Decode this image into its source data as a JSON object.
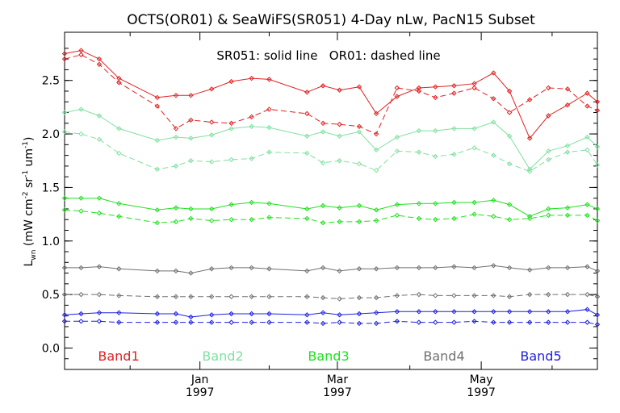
{
  "chart_data": {
    "type": "line",
    "title": "OCTS(OR01) & SeaWiFS(SR051) 4-Day nLw, PacN15 Subset",
    "annotation": "SR051: solid line   OR01: dashed line",
    "ylabel": "L_wn (mW cm^-2 sr^-1 um^-1)",
    "ylabel_main": "L",
    "ylabel_sub": "wn",
    "ylabel_rest": "(mW cm",
    "ylabel_sup1": "-2",
    "ylabel_mid": "sr",
    "ylabel_sup2": "-1",
    "ylabel_mid2": "um",
    "ylabel_sup3": "-1",
    "ylabel_end": ")",
    "ylim": [
      -0.2,
      2.95
    ],
    "yticks": [
      "0.0",
      "0.5",
      "1.0",
      "1.5",
      "2.0",
      "2.5"
    ],
    "ytick_values": [
      0.0,
      0.5,
      1.0,
      1.5,
      2.0,
      2.5
    ],
    "xlim": [
      0,
      100
    ],
    "xticks": [
      {
        "pos": 25.4,
        "label": "Jan",
        "year": "1997"
      },
      {
        "pos": 51.2,
        "label": "Mar",
        "year": "1997"
      },
      {
        "pos": 78.2,
        "label": "May",
        "year": "1997"
      }
    ],
    "grid": false,
    "legend_placement": "bottom",
    "bands": [
      {
        "name": "Band1",
        "color": "#e02020"
      },
      {
        "name": "Band2",
        "color": "#80e0a0"
      },
      {
        "name": "Band3",
        "color": "#20e020"
      },
      {
        "name": "Band4",
        "color": "#707070"
      },
      {
        "name": "Band5",
        "color": "#2020e0"
      }
    ],
    "series": [
      {
        "band": "Band1",
        "style": "solid",
        "x": [
          0,
          3.1,
          6.5,
          10.2,
          17.4,
          20.9,
          23.7,
          27.6,
          31.3,
          35.1,
          38.4,
          45.5,
          48.5,
          51.6,
          55.3,
          58.5,
          62.4,
          66.5,
          69.6,
          73.1,
          76.9,
          80.5,
          83.5,
          87.3,
          90.8,
          94.4,
          98.1,
          100
        ],
        "y": [
          2.75,
          2.78,
          2.7,
          2.52,
          2.34,
          2.36,
          2.36,
          2.42,
          2.49,
          2.52,
          2.51,
          2.39,
          2.45,
          2.41,
          2.44,
          2.19,
          2.35,
          2.43,
          2.44,
          2.45,
          2.47,
          2.57,
          2.4,
          1.96,
          2.17,
          2.27,
          2.38,
          2.3
        ]
      },
      {
        "band": "Band1",
        "style": "dashed",
        "x": [
          0,
          3.1,
          6.5,
          10.2,
          17.4,
          20.9,
          23.7,
          27.6,
          31.3,
          35.1,
          38.4,
          45.5,
          48.5,
          51.6,
          55.3,
          58.5,
          62.4,
          66.5,
          69.6,
          73.1,
          76.9,
          80.5,
          83.5,
          87.3,
          90.8,
          94.4,
          98.1,
          100
        ],
        "y": [
          2.7,
          2.74,
          2.65,
          2.48,
          2.26,
          2.05,
          2.13,
          2.11,
          2.1,
          2.16,
          2.23,
          2.19,
          2.1,
          2.09,
          2.07,
          2.0,
          2.43,
          2.4,
          2.34,
          2.38,
          2.43,
          2.33,
          2.2,
          2.32,
          2.43,
          2.42,
          2.26,
          2.22
        ]
      },
      {
        "band": "Band2",
        "style": "solid",
        "x": [
          0,
          3.1,
          6.5,
          10.2,
          17.4,
          20.9,
          23.7,
          27.6,
          31.3,
          35.1,
          38.4,
          45.5,
          48.5,
          51.6,
          55.3,
          58.5,
          62.4,
          66.5,
          69.6,
          73.1,
          76.9,
          80.5,
          83.5,
          87.3,
          90.8,
          94.4,
          98.1,
          100
        ],
        "y": [
          2.2,
          2.23,
          2.17,
          2.05,
          1.94,
          1.97,
          1.96,
          1.99,
          2.05,
          2.07,
          2.06,
          1.98,
          2.02,
          1.98,
          2.02,
          1.85,
          1.97,
          2.03,
          2.03,
          2.05,
          2.05,
          2.11,
          1.98,
          1.67,
          1.84,
          1.89,
          1.97,
          1.88
        ]
      },
      {
        "band": "Band2",
        "style": "dashed",
        "x": [
          0,
          3.1,
          6.5,
          10.2,
          17.4,
          20.9,
          23.7,
          27.6,
          31.3,
          35.1,
          38.4,
          45.5,
          48.5,
          51.6,
          55.3,
          58.5,
          62.4,
          66.5,
          69.6,
          73.1,
          76.9,
          80.5,
          83.5,
          87.3,
          90.8,
          94.4,
          98.1,
          100
        ],
        "y": [
          2.02,
          2.0,
          1.95,
          1.82,
          1.67,
          1.7,
          1.75,
          1.74,
          1.76,
          1.77,
          1.83,
          1.82,
          1.73,
          1.75,
          1.72,
          1.66,
          1.84,
          1.83,
          1.79,
          1.81,
          1.87,
          1.8,
          1.72,
          1.65,
          1.76,
          1.83,
          1.85,
          1.71
        ]
      },
      {
        "band": "Band3",
        "style": "solid",
        "x": [
          0,
          3.1,
          6.5,
          10.2,
          17.4,
          20.9,
          23.7,
          27.6,
          31.3,
          35.1,
          38.4,
          45.5,
          48.5,
          51.6,
          55.3,
          58.5,
          62.4,
          66.5,
          69.6,
          73.1,
          76.9,
          80.5,
          83.5,
          87.3,
          90.8,
          94.4,
          98.1,
          100
        ],
        "y": [
          1.4,
          1.4,
          1.4,
          1.35,
          1.29,
          1.31,
          1.3,
          1.3,
          1.34,
          1.36,
          1.35,
          1.3,
          1.33,
          1.31,
          1.33,
          1.29,
          1.34,
          1.35,
          1.35,
          1.36,
          1.36,
          1.38,
          1.34,
          1.23,
          1.3,
          1.31,
          1.34,
          1.3
        ]
      },
      {
        "band": "Band3",
        "style": "dashed",
        "x": [
          0,
          3.1,
          6.5,
          10.2,
          17.4,
          20.9,
          23.7,
          27.6,
          31.3,
          35.1,
          38.4,
          45.5,
          48.5,
          51.6,
          55.3,
          58.5,
          62.4,
          66.5,
          69.6,
          73.1,
          76.9,
          80.5,
          83.5,
          87.3,
          90.8,
          94.4,
          98.1,
          100
        ],
        "y": [
          1.29,
          1.28,
          1.26,
          1.23,
          1.17,
          1.18,
          1.21,
          1.19,
          1.2,
          1.2,
          1.22,
          1.21,
          1.17,
          1.18,
          1.18,
          1.19,
          1.24,
          1.21,
          1.2,
          1.21,
          1.25,
          1.23,
          1.2,
          1.21,
          1.24,
          1.24,
          1.24,
          1.19
        ]
      },
      {
        "band": "Band4",
        "style": "solid",
        "x": [
          0,
          3.1,
          6.5,
          10.2,
          17.4,
          20.9,
          23.7,
          27.6,
          31.3,
          35.1,
          38.4,
          45.5,
          48.5,
          51.6,
          55.3,
          58.5,
          62.4,
          66.5,
          69.6,
          73.1,
          76.9,
          80.5,
          83.5,
          87.3,
          90.8,
          94.4,
          98.1,
          100
        ],
        "y": [
          0.75,
          0.75,
          0.76,
          0.74,
          0.72,
          0.72,
          0.7,
          0.74,
          0.75,
          0.75,
          0.74,
          0.72,
          0.75,
          0.72,
          0.74,
          0.74,
          0.75,
          0.75,
          0.75,
          0.76,
          0.75,
          0.77,
          0.75,
          0.73,
          0.75,
          0.75,
          0.76,
          0.72
        ]
      },
      {
        "band": "Band4",
        "style": "dashed",
        "x": [
          0,
          3.1,
          6.5,
          10.2,
          17.4,
          20.9,
          23.7,
          27.6,
          31.3,
          35.1,
          38.4,
          45.5,
          48.5,
          51.6,
          55.3,
          58.5,
          62.4,
          66.5,
          69.6,
          73.1,
          76.9,
          80.5,
          83.5,
          87.3,
          90.8,
          94.4,
          98.1,
          100
        ],
        "y": [
          0.5,
          0.5,
          0.5,
          0.49,
          0.48,
          0.48,
          0.48,
          0.48,
          0.48,
          0.48,
          0.48,
          0.48,
          0.47,
          0.46,
          0.47,
          0.47,
          0.49,
          0.5,
          0.49,
          0.49,
          0.49,
          0.49,
          0.48,
          0.5,
          0.5,
          0.5,
          0.5,
          0.48
        ]
      },
      {
        "band": "Band5",
        "style": "solid",
        "x": [
          0,
          3.1,
          6.5,
          10.2,
          17.4,
          20.9,
          23.7,
          27.6,
          31.3,
          35.1,
          38.4,
          45.5,
          48.5,
          51.6,
          55.3,
          58.5,
          62.4,
          66.5,
          69.6,
          73.1,
          76.9,
          80.5,
          83.5,
          87.3,
          90.8,
          94.4,
          98.1,
          100
        ],
        "y": [
          0.31,
          0.32,
          0.33,
          0.33,
          0.32,
          0.32,
          0.29,
          0.31,
          0.32,
          0.32,
          0.32,
          0.31,
          0.33,
          0.31,
          0.32,
          0.33,
          0.34,
          0.34,
          0.34,
          0.34,
          0.34,
          0.34,
          0.34,
          0.34,
          0.34,
          0.34,
          0.36,
          0.31
        ]
      },
      {
        "band": "Band5",
        "style": "dashed",
        "x": [
          0,
          3.1,
          6.5,
          10.2,
          17.4,
          20.9,
          23.7,
          27.6,
          31.3,
          35.1,
          38.4,
          45.5,
          48.5,
          51.6,
          55.3,
          58.5,
          62.4,
          66.5,
          69.6,
          73.1,
          76.9,
          80.5,
          83.5,
          87.3,
          90.8,
          94.4,
          98.1,
          100
        ],
        "y": [
          0.25,
          0.25,
          0.25,
          0.24,
          0.24,
          0.24,
          0.24,
          0.24,
          0.24,
          0.24,
          0.24,
          0.24,
          0.23,
          0.24,
          0.23,
          0.23,
          0.25,
          0.24,
          0.24,
          0.24,
          0.25,
          0.24,
          0.24,
          0.24,
          0.24,
          0.24,
          0.24,
          0.22
        ]
      }
    ]
  }
}
